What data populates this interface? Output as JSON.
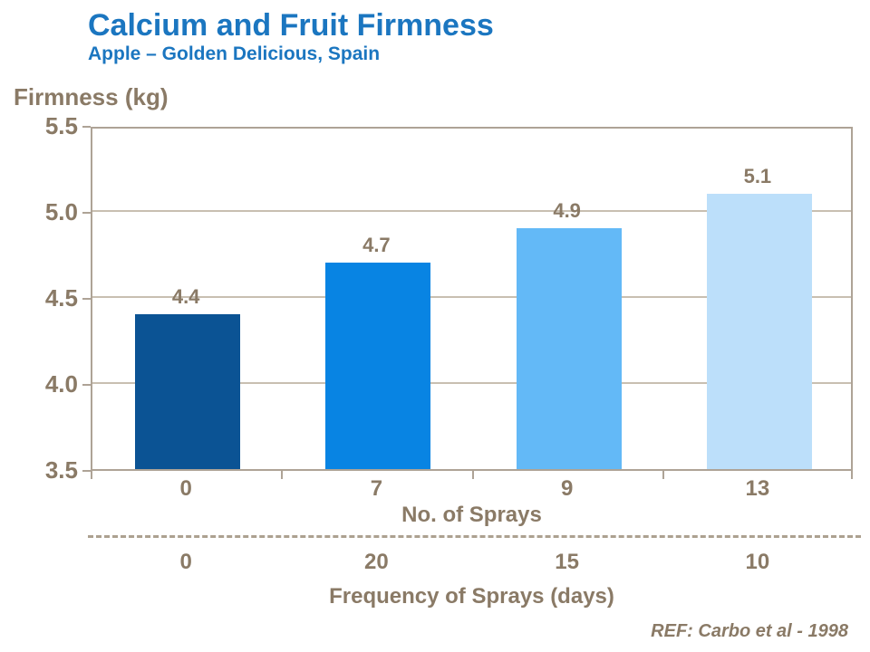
{
  "header": {
    "title": "Calcium and Fruit Firmness",
    "subtitle": "Apple – Golden Delicious, Spain"
  },
  "chart_data": {
    "type": "bar",
    "title": "Calcium and Fruit Firmness",
    "subtitle": "Apple – Golden Delicious, Spain",
    "ylabel": "Firmness (kg)",
    "ylim": [
      3.5,
      5.5
    ],
    "yticks": [
      3.5,
      4.0,
      4.5,
      5.0,
      5.5
    ],
    "ytick_labels": [
      "3.5",
      "4.0",
      "4.5",
      "5.0",
      "5.5"
    ],
    "grid": true,
    "legend": false,
    "categories": [
      "0",
      "7",
      "9",
      "13"
    ],
    "values": [
      4.4,
      4.7,
      4.9,
      5.1
    ],
    "value_labels": [
      "4.4",
      "4.7",
      "4.9",
      "5.1"
    ],
    "bar_colors": [
      "#0B5394",
      "#0884E3",
      "#63B9F7",
      "#BCDFFA"
    ],
    "x_axis_primary": {
      "label": "No. of Sprays",
      "tick_labels": [
        "0",
        "7",
        "9",
        "13"
      ]
    },
    "x_axis_secondary": {
      "label": "Frequency of Sprays (days)",
      "tick_labels": [
        "0",
        "20",
        "15",
        "10"
      ]
    }
  },
  "footer": {
    "reference": "REF: Carbo et al - 1998"
  },
  "colors": {
    "title_blue": "#1B76C0",
    "text_brown": "#8A7A66",
    "axis_tan": "#AEA396",
    "grid_tan": "#C8BFB1"
  }
}
